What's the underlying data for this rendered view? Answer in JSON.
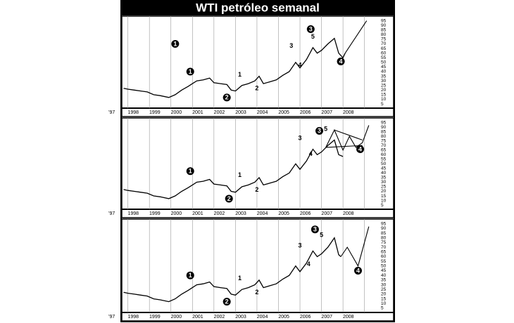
{
  "title": "WTI petróleo semanal",
  "chart_data": [
    {
      "type": "line",
      "color": "#000",
      "grid": true,
      "ylim": [
        2,
        97
      ],
      "yticks": [
        5,
        10,
        15,
        20,
        25,
        30,
        35,
        40,
        45,
        50,
        55,
        60,
        65,
        70,
        75,
        80,
        85,
        90,
        95
      ],
      "xlim": [
        1996.75,
        2008.6
      ],
      "xticks": [
        {
          "value": 1997,
          "label": "'97"
        },
        1998,
        1999,
        2000,
        2001,
        2002,
        2003,
        2004,
        2005,
        2006,
        2007,
        2008
      ],
      "series": [
        {
          "x": [
            1996.8,
            1997.0,
            1997.3,
            1997.6,
            1997.9,
            1998.2,
            1998.5,
            1998.9,
            1999.2,
            1999.5,
            1999.8,
            2000.0,
            2000.2,
            2000.5,
            2000.8,
            2001.0,
            2001.3,
            2001.6,
            2001.8,
            2002.0,
            2002.3,
            2002.6,
            2002.9,
            2003.1,
            2003.3,
            2003.6,
            2003.9,
            2004.2,
            2004.5,
            2004.8,
            2005.0,
            2005.3,
            2005.6,
            2005.8,
            2006.0,
            2006.3,
            2006.6,
            2006.8,
            2007.0,
            2007.1
          ],
          "values": [
            22,
            21,
            20,
            19,
            18,
            15,
            14,
            12,
            15,
            20,
            24,
            27,
            30,
            31,
            33,
            28,
            27,
            26,
            20,
            19,
            25,
            27,
            30,
            35,
            27,
            29,
            31,
            36,
            40,
            50,
            44,
            53,
            66,
            60,
            63,
            70,
            76,
            60,
            55,
            60
          ]
        },
        {
          "x": [
            2007.1,
            2008.1
          ],
          "values": [
            60,
            95
          ]
        }
      ],
      "annotations": [
        {
          "text": "1",
          "x": 1999.2,
          "y": 70,
          "circled": true
        },
        {
          "text": "1",
          "x": 1999.9,
          "y": 40,
          "circled": true
        },
        {
          "text": "2",
          "x": 2001.6,
          "y": 12,
          "circled": true
        },
        {
          "text": "1",
          "x": 2002.2,
          "y": 37,
          "circled": false
        },
        {
          "text": "2",
          "x": 2003.0,
          "y": 22,
          "circled": false
        },
        {
          "text": "3",
          "x": 2004.6,
          "y": 68,
          "circled": false
        },
        {
          "text": "4",
          "x": 2005.0,
          "y": 47,
          "circled": false
        },
        {
          "text": "3",
          "x": 2005.5,
          "y": 86,
          "circled": true
        },
        {
          "text": "5",
          "x": 2005.6,
          "y": 78,
          "circled": false
        },
        {
          "text": "4",
          "x": 2006.9,
          "y": 51,
          "circled": true
        }
      ]
    },
    {
      "type": "line",
      "color": "#000",
      "grid": true,
      "ylim": [
        2,
        97
      ],
      "yticks": [
        5,
        10,
        15,
        20,
        25,
        30,
        35,
        40,
        45,
        50,
        55,
        60,
        65,
        70,
        75,
        80,
        85,
        90,
        95
      ],
      "xlim": [
        1996.75,
        2008.6
      ],
      "xticks": [
        {
          "value": 1997,
          "label": "'97"
        },
        1998,
        1999,
        2000,
        2001,
        2002,
        2003,
        2004,
        2005,
        2006,
        2007,
        2008
      ],
      "series": [
        {
          "x": [
            1996.8,
            1997.0,
            1997.3,
            1997.6,
            1997.9,
            1998.2,
            1998.5,
            1998.9,
            1999.2,
            1999.5,
            1999.8,
            2000.0,
            2000.2,
            2000.5,
            2000.8,
            2001.0,
            2001.3,
            2001.6,
            2001.8,
            2002.0,
            2002.3,
            2002.6,
            2002.9,
            2003.1,
            2003.3,
            2003.6,
            2003.9,
            2004.2,
            2004.5,
            2004.8,
            2005.0,
            2005.3,
            2005.6,
            2005.8,
            2006.0,
            2006.3,
            2006.6,
            2006.8,
            2007.0
          ],
          "values": [
            22,
            21,
            20,
            19,
            18,
            15,
            14,
            12,
            15,
            20,
            24,
            27,
            30,
            31,
            33,
            28,
            27,
            26,
            20,
            19,
            25,
            27,
            30,
            35,
            27,
            29,
            31,
            36,
            40,
            50,
            44,
            53,
            66,
            60,
            63,
            70,
            76,
            60,
            58
          ]
        },
        {
          "x": [
            2006.2,
            2006.6,
            2007.0,
            2007.3,
            2007.6,
            2007.9,
            2008.2
          ],
          "values": [
            68,
            87,
            65,
            80,
            68,
            73,
            92
          ]
        },
        {
          "x": [
            2006.2,
            2007.9
          ],
          "values": [
            68,
            70
          ]
        },
        {
          "x": [
            2006.6,
            2007.9
          ],
          "values": [
            87,
            76
          ]
        }
      ],
      "annotations": [
        {
          "text": "1",
          "x": 1999.9,
          "y": 42,
          "circled": true
        },
        {
          "text": "2",
          "x": 2001.7,
          "y": 12,
          "circled": true
        },
        {
          "text": "1",
          "x": 2002.2,
          "y": 38,
          "circled": false
        },
        {
          "text": "2",
          "x": 2003.0,
          "y": 22,
          "circled": false
        },
        {
          "text": "3",
          "x": 2005.0,
          "y": 78,
          "circled": false
        },
        {
          "text": "4",
          "x": 2005.5,
          "y": 61,
          "circled": false
        },
        {
          "text": "3",
          "x": 2005.9,
          "y": 86,
          "circled": true
        },
        {
          "text": "5",
          "x": 2006.2,
          "y": 88,
          "circled": false
        },
        {
          "text": "4",
          "x": 2007.8,
          "y": 66,
          "circled": true
        }
      ]
    },
    {
      "type": "line",
      "color": "#000",
      "grid": true,
      "ylim": [
        2,
        97
      ],
      "yticks": [
        5,
        10,
        15,
        20,
        25,
        30,
        35,
        40,
        45,
        50,
        55,
        60,
        65,
        70,
        75,
        80,
        85,
        90,
        95
      ],
      "xlim": [
        1996.75,
        2008.6
      ],
      "xticks": [
        {
          "value": 1997,
          "label": "'97"
        },
        1998,
        1999,
        2000,
        2001,
        2002,
        2003,
        2004,
        2005,
        2006,
        2007,
        2008
      ],
      "series": [
        {
          "x": [
            1996.8,
            1997.0,
            1997.3,
            1997.6,
            1997.9,
            1998.2,
            1998.5,
            1998.9,
            1999.2,
            1999.5,
            1999.8,
            2000.0,
            2000.2,
            2000.5,
            2000.8,
            2001.0,
            2001.3,
            2001.6,
            2001.8,
            2002.0,
            2002.3,
            2002.6,
            2002.9,
            2003.1,
            2003.3,
            2003.6,
            2003.9,
            2004.2,
            2004.5,
            2004.8,
            2005.0,
            2005.3,
            2005.6,
            2005.8,
            2006.0,
            2006.3,
            2006.6,
            2006.8,
            2006.9
          ],
          "values": [
            22,
            21,
            20,
            19,
            18,
            15,
            14,
            12,
            15,
            20,
            24,
            27,
            30,
            31,
            33,
            28,
            27,
            26,
            20,
            19,
            25,
            27,
            30,
            35,
            27,
            29,
            31,
            36,
            40,
            50,
            44,
            53,
            66,
            60,
            63,
            70,
            80,
            62,
            60
          ]
        },
        {
          "x": [
            2006.9,
            2007.2,
            2007.7,
            2008.2
          ],
          "values": [
            60,
            70,
            50,
            92
          ]
        }
      ],
      "annotations": [
        {
          "text": "1",
          "x": 1999.9,
          "y": 40,
          "circled": true
        },
        {
          "text": "2",
          "x": 2001.6,
          "y": 12,
          "circled": true
        },
        {
          "text": "1",
          "x": 2002.2,
          "y": 37,
          "circled": false
        },
        {
          "text": "2",
          "x": 2003.0,
          "y": 22,
          "circled": false
        },
        {
          "text": "3",
          "x": 2005.0,
          "y": 72,
          "circled": false
        },
        {
          "text": "4",
          "x": 2005.4,
          "y": 52,
          "circled": false
        },
        {
          "text": "3",
          "x": 2005.7,
          "y": 89,
          "circled": true
        },
        {
          "text": "5",
          "x": 2006.0,
          "y": 83,
          "circled": false
        },
        {
          "text": "4",
          "x": 2007.7,
          "y": 45,
          "circled": true
        }
      ]
    }
  ]
}
